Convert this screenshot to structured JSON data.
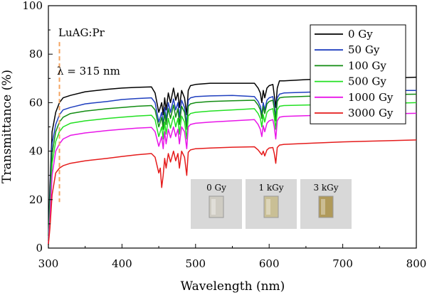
{
  "chart_data": {
    "type": "line",
    "sample_label": "LuAG:Pr",
    "xlabel": "Wavelength (nm)",
    "ylabel": "Transmittance (%)",
    "xlim": [
      300,
      800
    ],
    "ylim": [
      0,
      100
    ],
    "xticks": [
      300,
      400,
      500,
      600,
      700,
      800
    ],
    "yticks": [
      0,
      20,
      40,
      60,
      80,
      100
    ],
    "grid": false,
    "legend_position": "top-right",
    "marker": {
      "x": 315,
      "label": "λ = 315 nm",
      "color": "#f4a460"
    },
    "x": [
      300,
      302,
      305,
      310,
      315,
      320,
      330,
      350,
      380,
      400,
      420,
      440,
      445,
      450,
      452,
      454,
      456,
      458,
      460,
      463,
      466,
      470,
      473,
      476,
      478,
      481,
      485,
      488,
      490,
      493,
      500,
      520,
      550,
      580,
      585,
      588,
      590,
      592,
      594,
      597,
      600,
      605,
      607,
      609,
      611,
      614,
      620,
      650,
      700,
      750,
      800
    ],
    "series": [
      {
        "name": "0 Gy",
        "color": "#000000",
        "values": [
          5,
          25,
          48,
          56,
          60,
          62,
          63,
          64.5,
          65.5,
          66,
          66.3,
          66.5,
          64,
          56,
          58,
          60,
          55,
          62,
          57,
          64,
          60,
          66,
          61,
          64,
          58,
          65,
          62,
          55,
          65,
          67,
          67.5,
          68,
          68,
          68,
          66,
          64,
          60,
          65,
          62,
          66,
          67,
          67.5,
          63,
          58,
          66,
          69,
          69,
          69.5,
          70,
          70,
          70.5
        ]
      },
      {
        "name": "50 Gy",
        "color": "#1f3fbf",
        "values": [
          4,
          21,
          43,
          51,
          55,
          57,
          58,
          59.5,
          60.5,
          61.3,
          61.7,
          62,
          60,
          52,
          54,
          56,
          51,
          58,
          53,
          60,
          56,
          61.5,
          57,
          60,
          54,
          61,
          58,
          51,
          61,
          62,
          62.5,
          62.8,
          63,
          62.5,
          60.5,
          58.5,
          55,
          60,
          57,
          61,
          62,
          62.5,
          59,
          54,
          62,
          63.5,
          64,
          64.3,
          64.8,
          65,
          65
        ]
      },
      {
        "name": "100 Gy",
        "color": "#128c12",
        "values": [
          3,
          18,
          39,
          48,
          52,
          54,
          55.5,
          56.5,
          57.5,
          58,
          58.5,
          58.8,
          57,
          50,
          52,
          54,
          49,
          56,
          51,
          57.5,
          53.5,
          59,
          54,
          57.5,
          51,
          58.5,
          56,
          49,
          58.5,
          59.5,
          60,
          60.5,
          60.8,
          61,
          59,
          57,
          53.5,
          58.5,
          55.5,
          59.5,
          60.5,
          61,
          57.5,
          52.5,
          60.5,
          62,
          62.3,
          62.6,
          63,
          63.3,
          63.5
        ]
      },
      {
        "name": "500 Gy",
        "color": "#22e022",
        "values": [
          3,
          15,
          35,
          44,
          48,
          50,
          51.5,
          52.5,
          53.5,
          54,
          54.5,
          54.8,
          53,
          46,
          48,
          50,
          45,
          52,
          47,
          53.5,
          49.5,
          54.5,
          50,
          53.5,
          47,
          54.5,
          52,
          45,
          54.5,
          55.5,
          56,
          56.5,
          57,
          57.5,
          55.5,
          53.5,
          50,
          55,
          52,
          56,
          57,
          57.5,
          54,
          49,
          57,
          58.5,
          58.8,
          59,
          59.3,
          59.6,
          60
        ]
      },
      {
        "name": "1000 Gy",
        "color": "#e815e8",
        "values": [
          2,
          12,
          30,
          40,
          43,
          45,
          46.5,
          47.5,
          48.5,
          49,
          49.5,
          49.8,
          48,
          42,
          44,
          46,
          41,
          48,
          43,
          49,
          45.5,
          50,
          46,
          49,
          43,
          50,
          48,
          41,
          50,
          51,
          51.5,
          52,
          52.5,
          53,
          51,
          49,
          46,
          50.5,
          48,
          51.5,
          52.5,
          53,
          50,
          45,
          52.5,
          54,
          54.3,
          54.6,
          55,
          55.3,
          55.6
        ]
      },
      {
        "name": "3000 Gy",
        "color": "#e51c1c",
        "values": [
          1.5,
          8,
          22,
          31,
          33,
          34,
          35,
          36,
          37,
          37.8,
          38.5,
          39,
          37.5,
          31,
          33,
          25,
          30,
          37,
          33,
          39,
          35.5,
          40,
          36,
          39,
          33,
          40,
          37.5,
          30,
          39.5,
          40.5,
          41,
          41.3,
          41.6,
          41.8,
          40.5,
          39.3,
          38.5,
          40,
          38,
          40.5,
          41.3,
          41.5,
          39,
          35,
          41.5,
          42.5,
          42.8,
          43.2,
          43.8,
          44.2,
          44.6
        ]
      }
    ]
  },
  "inset": {
    "photos": [
      {
        "label": "0 Gy",
        "tint": "#cfccc3"
      },
      {
        "label": "1 kGy",
        "tint": "#c9bf95"
      },
      {
        "label": "3 kGy",
        "tint": "#b09a5a"
      }
    ]
  }
}
